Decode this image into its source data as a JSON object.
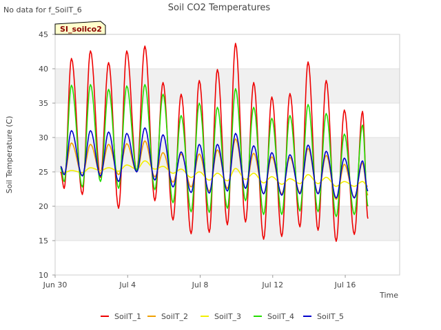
{
  "page": {
    "nodata_note": "No data for f_SoilT_6",
    "badge_label": "SI_soilco2"
  },
  "chart_data": {
    "type": "line",
    "title": "Soil CO2 Temperatures",
    "xlabel": "Time",
    "ylabel": "Soil Temperature (C)",
    "xlim": [
      0,
      19.0
    ],
    "ylim": [
      10,
      45
    ],
    "y_ticks": [
      10,
      15,
      20,
      25,
      30,
      35,
      40,
      45
    ],
    "x_ticks": [
      {
        "day": 0,
        "label": "Jun 30"
      },
      {
        "day": 4,
        "label": "Jul 4"
      },
      {
        "day": 8,
        "label": "Jul 8"
      },
      {
        "day": 12,
        "label": "Jul 12"
      },
      {
        "day": 16,
        "label": "Jul 16"
      }
    ],
    "x_unit": "days since Jun 30",
    "bands": "alternating grey horizontal bands every 5 C",
    "legend_position": "bottom",
    "series": [
      {
        "name": "SoilT_1",
        "color": "#ee0000",
        "points": [
          [
            0.3,
            25.0
          ],
          [
            0.5,
            22.6
          ],
          [
            0.9,
            41.5
          ],
          [
            1.5,
            21.7
          ],
          [
            1.95,
            42.6
          ],
          [
            2.5,
            24.2
          ],
          [
            2.95,
            40.9
          ],
          [
            3.5,
            19.7
          ],
          [
            3.95,
            42.6
          ],
          [
            4.5,
            25.0
          ],
          [
            4.95,
            43.3
          ],
          [
            5.5,
            20.8
          ],
          [
            5.95,
            38.0
          ],
          [
            6.5,
            18.0
          ],
          [
            6.95,
            36.3
          ],
          [
            7.5,
            16.0
          ],
          [
            7.95,
            38.3
          ],
          [
            8.5,
            16.2
          ],
          [
            8.95,
            39.9
          ],
          [
            9.5,
            17.3
          ],
          [
            9.95,
            43.7
          ],
          [
            10.5,
            17.7
          ],
          [
            10.95,
            38.0
          ],
          [
            11.5,
            15.2
          ],
          [
            11.95,
            35.9
          ],
          [
            12.5,
            15.6
          ],
          [
            12.95,
            36.4
          ],
          [
            13.5,
            17.0
          ],
          [
            13.95,
            41.0
          ],
          [
            14.5,
            16.5
          ],
          [
            14.95,
            38.3
          ],
          [
            15.5,
            14.9
          ],
          [
            15.95,
            34.0
          ],
          [
            16.5,
            15.9
          ],
          [
            16.95,
            33.8
          ],
          [
            17.25,
            18.2
          ]
        ]
      },
      {
        "name": "SoilT_2",
        "color": "#f0a000",
        "points": [
          [
            0.3,
            25.8
          ],
          [
            0.5,
            24.6
          ],
          [
            0.9,
            29.2
          ],
          [
            1.5,
            24.5
          ],
          [
            1.95,
            29.0
          ],
          [
            2.5,
            24.8
          ],
          [
            2.95,
            29.0
          ],
          [
            3.5,
            24.6
          ],
          [
            3.95,
            29.1
          ],
          [
            4.5,
            25.1
          ],
          [
            4.95,
            29.5
          ],
          [
            5.5,
            24.3
          ],
          [
            5.95,
            27.8
          ],
          [
            6.5,
            23.5
          ],
          [
            6.95,
            27.6
          ],
          [
            7.5,
            22.8
          ],
          [
            7.95,
            27.6
          ],
          [
            8.5,
            22.2
          ],
          [
            8.95,
            28.2
          ],
          [
            9.5,
            22.6
          ],
          [
            9.95,
            29.8
          ],
          [
            10.5,
            22.6
          ],
          [
            10.95,
            27.7
          ],
          [
            11.5,
            21.8
          ],
          [
            11.95,
            27.2
          ],
          [
            12.5,
            21.8
          ],
          [
            12.95,
            27.1
          ],
          [
            13.5,
            22.0
          ],
          [
            13.95,
            28.4
          ],
          [
            14.5,
            21.9
          ],
          [
            14.95,
            27.4
          ],
          [
            15.5,
            21.0
          ],
          [
            15.95,
            26.1
          ],
          [
            16.5,
            21.3
          ],
          [
            16.95,
            26.3
          ],
          [
            17.25,
            21.6
          ]
        ]
      },
      {
        "name": "SoilT_3",
        "color": "#f2ef00",
        "points": [
          [
            0.3,
            25.3
          ],
          [
            0.5,
            24.9
          ],
          [
            0.9,
            25.2
          ],
          [
            1.5,
            24.9
          ],
          [
            1.95,
            25.6
          ],
          [
            2.5,
            25.2
          ],
          [
            2.95,
            25.6
          ],
          [
            3.5,
            25.1
          ],
          [
            3.95,
            26.0
          ],
          [
            4.5,
            25.4
          ],
          [
            4.95,
            26.6
          ],
          [
            5.5,
            25.4
          ],
          [
            5.95,
            25.8
          ],
          [
            6.5,
            24.8
          ],
          [
            6.95,
            25.4
          ],
          [
            7.5,
            24.2
          ],
          [
            7.95,
            25.0
          ],
          [
            8.5,
            23.8
          ],
          [
            8.95,
            24.8
          ],
          [
            9.5,
            23.7
          ],
          [
            9.95,
            25.5
          ],
          [
            10.5,
            23.9
          ],
          [
            10.95,
            24.8
          ],
          [
            11.5,
            23.4
          ],
          [
            11.95,
            24.3
          ],
          [
            12.5,
            23.2
          ],
          [
            12.95,
            24.0
          ],
          [
            13.5,
            23.3
          ],
          [
            13.95,
            24.6
          ],
          [
            14.5,
            23.3
          ],
          [
            14.95,
            24.2
          ],
          [
            15.5,
            22.9
          ],
          [
            15.95,
            23.6
          ],
          [
            16.5,
            22.9
          ],
          [
            16.95,
            23.6
          ],
          [
            17.25,
            22.9
          ]
        ]
      },
      {
        "name": "SoilT_4",
        "color": "#22dd00",
        "points": [
          [
            0.3,
            25.6
          ],
          [
            0.5,
            23.6
          ],
          [
            0.9,
            37.6
          ],
          [
            1.5,
            22.8
          ],
          [
            1.95,
            37.7
          ],
          [
            2.5,
            23.6
          ],
          [
            2.95,
            37.0
          ],
          [
            3.5,
            22.6
          ],
          [
            3.95,
            37.5
          ],
          [
            4.5,
            25.2
          ],
          [
            4.95,
            37.7
          ],
          [
            5.5,
            22.4
          ],
          [
            5.95,
            36.3
          ],
          [
            6.5,
            20.5
          ],
          [
            6.95,
            33.2
          ],
          [
            7.5,
            19.2
          ],
          [
            7.95,
            35.0
          ],
          [
            8.5,
            19.1
          ],
          [
            8.95,
            34.4
          ],
          [
            9.5,
            19.7
          ],
          [
            9.95,
            37.1
          ],
          [
            10.5,
            20.8
          ],
          [
            10.95,
            34.4
          ],
          [
            11.5,
            18.8
          ],
          [
            11.95,
            32.8
          ],
          [
            12.5,
            18.8
          ],
          [
            12.95,
            33.2
          ],
          [
            13.5,
            19.3
          ],
          [
            13.95,
            34.8
          ],
          [
            14.5,
            19.2
          ],
          [
            14.95,
            33.5
          ],
          [
            15.5,
            18.5
          ],
          [
            15.95,
            30.5
          ],
          [
            16.5,
            18.8
          ],
          [
            16.95,
            31.8
          ],
          [
            17.25,
            20.0
          ]
        ]
      },
      {
        "name": "SoilT_5",
        "color": "#0000cc",
        "points": [
          [
            0.3,
            25.8
          ],
          [
            0.5,
            24.6
          ],
          [
            0.9,
            31.0
          ],
          [
            1.5,
            24.4
          ],
          [
            1.95,
            31.0
          ],
          [
            2.5,
            24.4
          ],
          [
            2.95,
            30.8
          ],
          [
            3.5,
            23.6
          ],
          [
            3.95,
            30.6
          ],
          [
            4.5,
            25.0
          ],
          [
            4.95,
            31.4
          ],
          [
            5.5,
            23.8
          ],
          [
            5.95,
            30.4
          ],
          [
            6.5,
            22.8
          ],
          [
            6.95,
            27.9
          ],
          [
            7.5,
            22.0
          ],
          [
            7.95,
            29.0
          ],
          [
            8.5,
            21.9
          ],
          [
            8.95,
            29.0
          ],
          [
            9.5,
            22.2
          ],
          [
            9.95,
            30.6
          ],
          [
            10.5,
            22.6
          ],
          [
            10.95,
            28.8
          ],
          [
            11.5,
            21.8
          ],
          [
            11.95,
            27.8
          ],
          [
            12.5,
            21.6
          ],
          [
            12.95,
            27.5
          ],
          [
            13.5,
            21.8
          ],
          [
            13.95,
            28.9
          ],
          [
            14.5,
            21.8
          ],
          [
            14.95,
            28.0
          ],
          [
            15.5,
            21.2
          ],
          [
            15.95,
            27.0
          ],
          [
            16.5,
            21.2
          ],
          [
            16.95,
            26.6
          ],
          [
            17.25,
            22.2
          ]
        ]
      }
    ]
  }
}
